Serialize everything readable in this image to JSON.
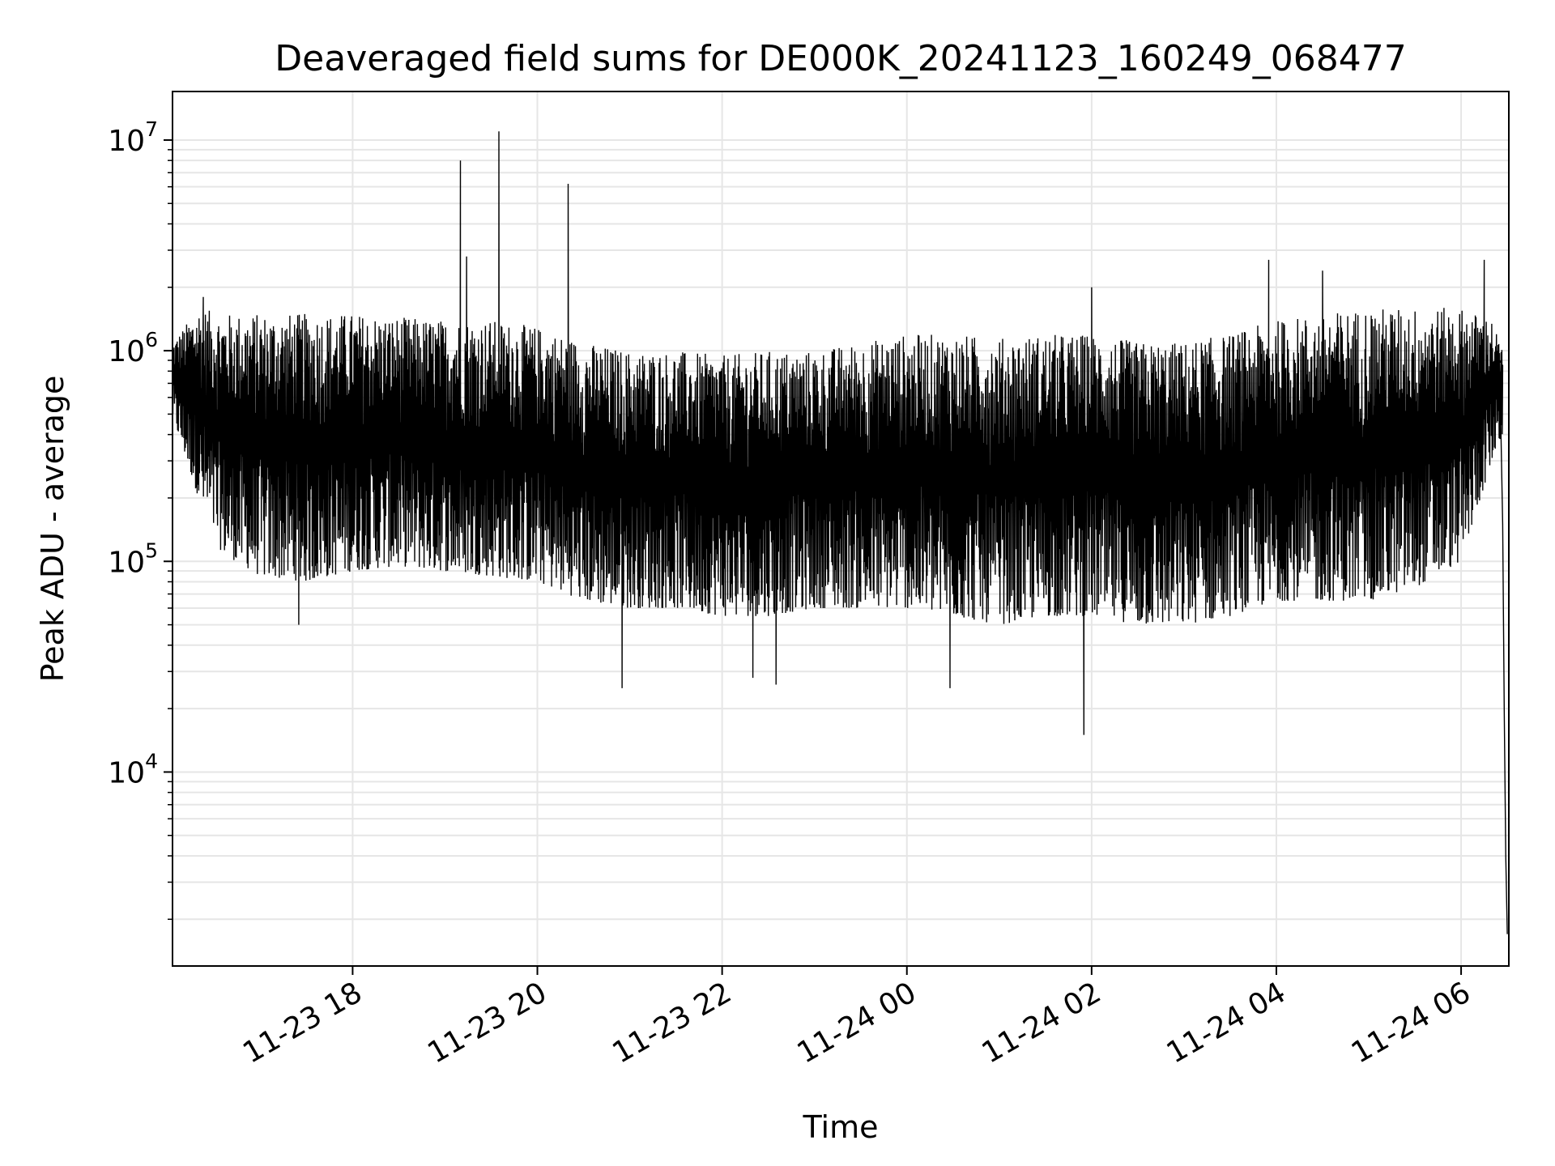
{
  "chart_data": {
    "type": "line",
    "title": "Deaveraged field sums for DE000K_20241123_160249_068477",
    "xlabel": "Time",
    "ylabel": "Peak ADU - average",
    "yscale": "log",
    "grid": true,
    "xlim": [
      "2024-11-23T16:03",
      "2024-11-24T06:31"
    ],
    "ylim": [
      1200,
      17000000
    ],
    "x_ticks": [
      {
        "value": "2024-11-23T18:00",
        "label": "11-23 18"
      },
      {
        "value": "2024-11-23T20:00",
        "label": "11-23 20"
      },
      {
        "value": "2024-11-23T22:00",
        "label": "11-23 22"
      },
      {
        "value": "2024-11-24T00:00",
        "label": "11-24 00"
      },
      {
        "value": "2024-11-24T02:00",
        "label": "11-24 02"
      },
      {
        "value": "2024-11-24T04:00",
        "label": "11-24 04"
      },
      {
        "value": "2024-11-24T06:00",
        "label": "11-24 06"
      }
    ],
    "y_ticks": [
      {
        "value": 10000,
        "base": "10",
        "exp": "4"
      },
      {
        "value": 100000,
        "base": "10",
        "exp": "5"
      },
      {
        "value": 1000000,
        "base": "10",
        "exp": "6"
      },
      {
        "value": 10000000,
        "base": "10",
        "exp": "7"
      }
    ],
    "line_color": "#000000",
    "band": [
      {
        "t": "2024-11-23T16:03",
        "lo": 480000,
        "hi": 1100000
      },
      {
        "t": "2024-11-23T16:20",
        "lo": 200000,
        "hi": 1600000
      },
      {
        "t": "2024-11-23T16:35",
        "lo": 110000,
        "hi": 1500000
      },
      {
        "t": "2024-11-23T17:00",
        "lo": 85000,
        "hi": 1500000
      },
      {
        "t": "2024-11-23T17:30",
        "lo": 80000,
        "hi": 1500000
      },
      {
        "t": "2024-11-23T18:00",
        "lo": 90000,
        "hi": 1500000
      },
      {
        "t": "2024-11-23T18:30",
        "lo": 95000,
        "hi": 1450000
      },
      {
        "t": "2024-11-23T19:00",
        "lo": 90000,
        "hi": 1400000
      },
      {
        "t": "2024-11-23T19:30",
        "lo": 85000,
        "hi": 1400000
      },
      {
        "t": "2024-11-23T20:00",
        "lo": 80000,
        "hi": 1300000
      },
      {
        "t": "2024-11-23T20:30",
        "lo": 65000,
        "hi": 1100000
      },
      {
        "t": "2024-11-23T21:00",
        "lo": 60000,
        "hi": 1000000
      },
      {
        "t": "2024-11-23T21:30",
        "lo": 60000,
        "hi": 1000000
      },
      {
        "t": "2024-11-23T22:00",
        "lo": 55000,
        "hi": 950000
      },
      {
        "t": "2024-11-23T22:30",
        "lo": 55000,
        "hi": 1000000
      },
      {
        "t": "2024-11-23T23:00",
        "lo": 60000,
        "hi": 1000000
      },
      {
        "t": "2024-11-23T23:30",
        "lo": 60000,
        "hi": 1100000
      },
      {
        "t": "2024-11-24T00:00",
        "lo": 60000,
        "hi": 1200000
      },
      {
        "t": "2024-11-24T00:30",
        "lo": 55000,
        "hi": 1200000
      },
      {
        "t": "2024-11-24T01:00",
        "lo": 50000,
        "hi": 1150000
      },
      {
        "t": "2024-11-24T01:30",
        "lo": 55000,
        "hi": 1200000
      },
      {
        "t": "2024-11-24T02:00",
        "lo": 55000,
        "hi": 1200000
      },
      {
        "t": "2024-11-24T02:30",
        "lo": 50000,
        "hi": 1100000
      },
      {
        "t": "2024-11-24T03:00",
        "lo": 50000,
        "hi": 1100000
      },
      {
        "t": "2024-11-24T03:30",
        "lo": 55000,
        "hi": 1200000
      },
      {
        "t": "2024-11-24T04:00",
        "lo": 65000,
        "hi": 1400000
      },
      {
        "t": "2024-11-24T04:30",
        "lo": 65000,
        "hi": 1500000
      },
      {
        "t": "2024-11-24T05:00",
        "lo": 65000,
        "hi": 1600000
      },
      {
        "t": "2024-11-24T05:30",
        "lo": 75000,
        "hi": 1600000
      },
      {
        "t": "2024-11-24T06:00",
        "lo": 100000,
        "hi": 1600000
      },
      {
        "t": "2024-11-24T06:20",
        "lo": 300000,
        "hi": 1400000
      },
      {
        "t": "2024-11-24T06:27",
        "lo": 400000,
        "hi": 1000000
      }
    ],
    "spikes": [
      {
        "t": "2024-11-23T16:23",
        "value": 1800000
      },
      {
        "t": "2024-11-23T17:25",
        "value": 50000
      },
      {
        "t": "2024-11-23T19:10",
        "value": 8000000
      },
      {
        "t": "2024-11-23T19:14",
        "value": 2800000
      },
      {
        "t": "2024-11-23T19:35",
        "value": 11000000
      },
      {
        "t": "2024-11-23T20:20",
        "value": 6200000
      },
      {
        "t": "2024-11-23T20:55",
        "value": 25000
      },
      {
        "t": "2024-11-23T22:20",
        "value": 28000
      },
      {
        "t": "2024-11-23T22:35",
        "value": 26000
      },
      {
        "t": "2024-11-24T00:28",
        "value": 25000
      },
      {
        "t": "2024-11-24T01:55",
        "value": 15000
      },
      {
        "t": "2024-11-24T02:00",
        "value": 2000000
      },
      {
        "t": "2024-11-24T03:55",
        "value": 2700000
      },
      {
        "t": "2024-11-24T04:30",
        "value": 2400000
      },
      {
        "t": "2024-11-24T06:15",
        "value": 2700000
      }
    ],
    "tail": [
      {
        "t": "2024-11-24T06:25",
        "value": 900000
      },
      {
        "t": "2024-11-24T06:27",
        "value": 150000
      },
      {
        "t": "2024-11-24T06:28",
        "value": 20000
      },
      {
        "t": "2024-11-24T06:29",
        "value": 4000
      },
      {
        "t": "2024-11-24T06:30",
        "value": 1700
      }
    ]
  }
}
